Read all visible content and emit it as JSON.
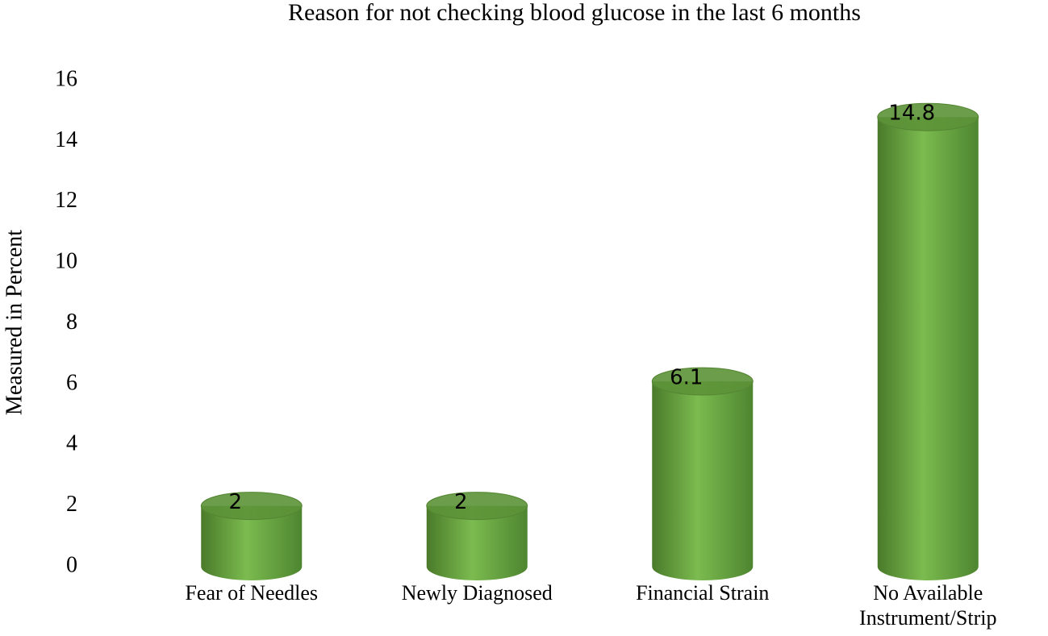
{
  "chart_data": {
    "type": "bar",
    "title": "Reason for not checking blood glucose in the last 6 months",
    "y_label": "Measured in Percent",
    "categories": [
      "Fear of Needles",
      "Newly Diagnosed",
      "Financial Strain",
      "No Available Instrument/Strip"
    ],
    "values": [
      2,
      2,
      6.1,
      14.8
    ],
    "color": "#70ad47",
    "ylim": [
      0,
      16
    ],
    "yticks": [
      0,
      2,
      4,
      6,
      8,
      10,
      12,
      14,
      16
    ],
    "grid": false
  }
}
